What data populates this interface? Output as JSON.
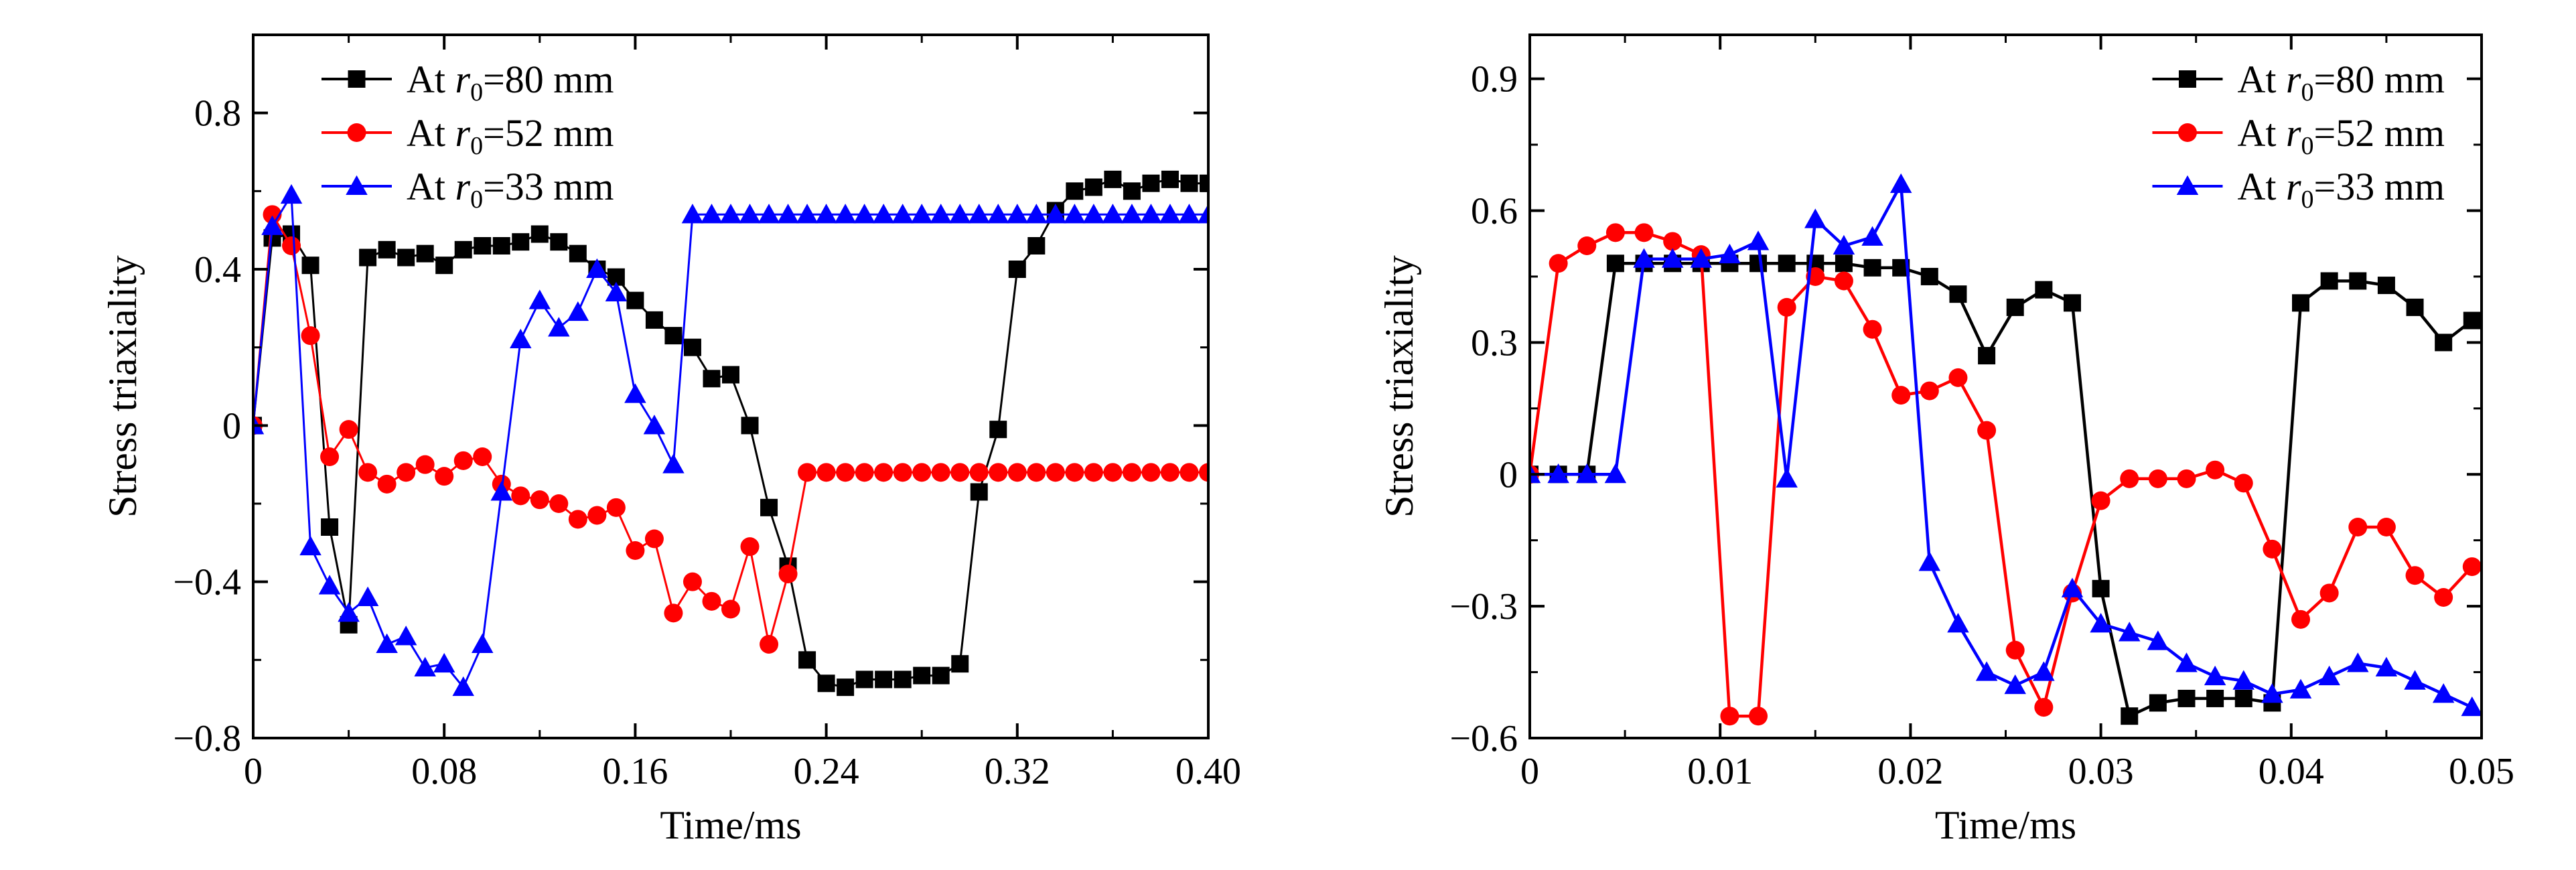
{
  "chart_data": [
    {
      "type": "line",
      "xlabel": "Time/ms",
      "ylabel": "Stress triaxiality",
      "xlim": [
        0,
        0.4
      ],
      "ylim": [
        -0.8,
        1.0
      ],
      "xticks": [
        0,
        0.08,
        0.16,
        0.24,
        0.32,
        0.4
      ],
      "xtick_labels": [
        "0",
        "0.08",
        "0.16",
        "0.24",
        "0.32",
        "0.40"
      ],
      "yticks": [
        -0.8,
        -0.4,
        0,
        0.4,
        0.8
      ],
      "ytick_labels": [
        "−0.8",
        "−0.4",
        "0",
        "0.4",
        "0.8"
      ],
      "legend_position": "top-left",
      "series": [
        {
          "name": "At r₀=80 mm",
          "legend_prefix": "At ",
          "legend_var": "r",
          "legend_sub": "0",
          "legend_suffix": "=80 mm",
          "color": "#000000",
          "marker": "square",
          "x": [
            0,
            0.008,
            0.016,
            0.024,
            0.032,
            0.04,
            0.048,
            0.056,
            0.064,
            0.072,
            0.08,
            0.088,
            0.096,
            0.104,
            0.112,
            0.12,
            0.128,
            0.136,
            0.144,
            0.152,
            0.16,
            0.168,
            0.176,
            0.184,
            0.192,
            0.2,
            0.208,
            0.216,
            0.224,
            0.232,
            0.24,
            0.248,
            0.256,
            0.264,
            0.272,
            0.28,
            0.288,
            0.296,
            0.304,
            0.312,
            0.32,
            0.328,
            0.336,
            0.344,
            0.352,
            0.36,
            0.368,
            0.376,
            0.384,
            0.392,
            0.4
          ],
          "y": [
            0,
            0.48,
            0.49,
            0.41,
            -0.26,
            -0.51,
            0.43,
            0.45,
            0.43,
            0.44,
            0.41,
            0.45,
            0.46,
            0.46,
            0.47,
            0.49,
            0.47,
            0.44,
            0.4,
            0.38,
            0.32,
            0.27,
            0.23,
            0.2,
            0.12,
            0.13,
            0.0,
            -0.21,
            -0.36,
            -0.6,
            -0.66,
            -0.67,
            -0.65,
            -0.65,
            -0.65,
            -0.64,
            -0.64,
            -0.61,
            -0.17,
            -0.01,
            0.4,
            0.46,
            0.55,
            0.6,
            0.61,
            0.63,
            0.6,
            0.62,
            0.63,
            0.62,
            0.62
          ]
        },
        {
          "name": "At r₀=52 mm",
          "legend_prefix": "At ",
          "legend_var": "r",
          "legend_sub": "0",
          "legend_suffix": "=52 mm",
          "color": "#ff0000",
          "marker": "circle",
          "x": [
            0,
            0.008,
            0.016,
            0.024,
            0.032,
            0.04,
            0.048,
            0.056,
            0.064,
            0.072,
            0.08,
            0.088,
            0.096,
            0.104,
            0.112,
            0.12,
            0.128,
            0.136,
            0.144,
            0.152,
            0.16,
            0.168,
            0.176,
            0.184,
            0.192,
            0.2,
            0.208,
            0.216,
            0.224,
            0.232,
            0.24,
            0.248,
            0.256,
            0.264,
            0.272,
            0.28,
            0.288,
            0.296,
            0.304,
            0.312,
            0.32,
            0.328,
            0.336,
            0.344,
            0.352,
            0.36,
            0.368,
            0.376,
            0.384,
            0.392,
            0.4
          ],
          "y": [
            0,
            0.54,
            0.46,
            0.23,
            -0.08,
            -0.01,
            -0.12,
            -0.15,
            -0.12,
            -0.1,
            -0.13,
            -0.09,
            -0.08,
            -0.15,
            -0.18,
            -0.19,
            -0.2,
            -0.24,
            -0.23,
            -0.21,
            -0.32,
            -0.29,
            -0.48,
            -0.4,
            -0.45,
            -0.47,
            -0.31,
            -0.56,
            -0.38,
            -0.12,
            -0.12,
            -0.12,
            -0.12,
            -0.12,
            -0.12,
            -0.12,
            -0.12,
            -0.12,
            -0.12,
            -0.12,
            -0.12,
            -0.12,
            -0.12,
            -0.12,
            -0.12,
            -0.12,
            -0.12,
            -0.12,
            -0.12,
            -0.12,
            -0.12
          ]
        },
        {
          "name": "At r₀=33 mm",
          "legend_prefix": "At ",
          "legend_var": "r",
          "legend_sub": "0",
          "legend_suffix": "=33 mm",
          "color": "#0000ff",
          "marker": "triangle",
          "x": [
            0,
            0.008,
            0.016,
            0.024,
            0.032,
            0.04,
            0.048,
            0.056,
            0.064,
            0.072,
            0.08,
            0.088,
            0.096,
            0.104,
            0.112,
            0.12,
            0.128,
            0.136,
            0.144,
            0.152,
            0.16,
            0.168,
            0.176,
            0.184,
            0.192,
            0.2,
            0.208,
            0.216,
            0.224,
            0.232,
            0.24,
            0.248,
            0.256,
            0.264,
            0.272,
            0.28,
            0.288,
            0.296,
            0.304,
            0.312,
            0.32,
            0.328,
            0.336,
            0.344,
            0.352,
            0.36,
            0.368,
            0.376,
            0.384,
            0.392,
            0.4
          ],
          "y": [
            0,
            0.51,
            0.59,
            -0.31,
            -0.41,
            -0.48,
            -0.44,
            -0.56,
            -0.54,
            -0.62,
            -0.61,
            -0.67,
            -0.56,
            -0.17,
            0.22,
            0.32,
            0.25,
            0.29,
            0.4,
            0.34,
            0.08,
            0.0,
            -0.1,
            0.54,
            0.54,
            0.54,
            0.54,
            0.54,
            0.54,
            0.54,
            0.54,
            0.54,
            0.54,
            0.54,
            0.54,
            0.54,
            0.54,
            0.54,
            0.54,
            0.54,
            0.54,
            0.54,
            0.54,
            0.54,
            0.54,
            0.54,
            0.54,
            0.54,
            0.54,
            0.54,
            0.54
          ]
        }
      ]
    },
    {
      "type": "line",
      "xlabel": "Time/ms",
      "ylabel": "Stress triaxiality",
      "xlim": [
        0,
        0.05
      ],
      "ylim": [
        -0.6,
        1.0
      ],
      "xticks": [
        0,
        0.01,
        0.02,
        0.03,
        0.04,
        0.05
      ],
      "xtick_labels": [
        "0",
        "0.01",
        "0.02",
        "0.03",
        "0.04",
        "0.05"
      ],
      "yticks": [
        -0.6,
        -0.3,
        0,
        0.3,
        0.6,
        0.9
      ],
      "ytick_labels": [
        "−0.6",
        "−0.3",
        "0",
        "0.3",
        "0.6",
        "0.9"
      ],
      "legend_position": "top-right",
      "series": [
        {
          "name": "At r₀=80 mm",
          "legend_prefix": "At ",
          "legend_var": "r",
          "legend_sub": "0",
          "legend_suffix": "=80 mm",
          "color": "#000000",
          "marker": "square",
          "x": [
            0,
            0.0015,
            0.003,
            0.0045,
            0.006,
            0.0075,
            0.009,
            0.0105,
            0.012,
            0.0135,
            0.015,
            0.0165,
            0.018,
            0.0195,
            0.021,
            0.0225,
            0.024,
            0.0255,
            0.027,
            0.0285,
            0.03,
            0.0315,
            0.033,
            0.0345,
            0.036,
            0.0375,
            0.039,
            0.0405,
            0.042,
            0.0435,
            0.045,
            0.0465,
            0.048,
            0.0495
          ],
          "y": [
            0,
            0.0,
            0.0,
            0.48,
            0.48,
            0.48,
            0.48,
            0.48,
            0.48,
            0.48,
            0.48,
            0.48,
            0.47,
            0.47,
            0.45,
            0.41,
            0.27,
            0.38,
            0.42,
            0.39,
            -0.26,
            -0.55,
            -0.52,
            -0.51,
            -0.51,
            -0.51,
            -0.52,
            0.39,
            0.44,
            0.44,
            0.43,
            0.38,
            0.3,
            0.35
          ]
        },
        {
          "name": "At r₀=52 mm",
          "legend_prefix": "At ",
          "legend_var": "r",
          "legend_sub": "0",
          "legend_suffix": "=52 mm",
          "color": "#ff0000",
          "marker": "circle",
          "x": [
            0,
            0.0015,
            0.003,
            0.0045,
            0.006,
            0.0075,
            0.009,
            0.0105,
            0.012,
            0.0135,
            0.015,
            0.0165,
            0.018,
            0.0195,
            0.021,
            0.0225,
            0.024,
            0.0255,
            0.027,
            0.0285,
            0.03,
            0.0315,
            0.033,
            0.0345,
            0.036,
            0.0375,
            0.039,
            0.0405,
            0.042,
            0.0435,
            0.045,
            0.0465,
            0.048,
            0.0495
          ],
          "y": [
            0,
            0.48,
            0.52,
            0.55,
            0.55,
            0.53,
            0.5,
            -0.55,
            -0.55,
            0.38,
            0.45,
            0.44,
            0.33,
            0.18,
            0.19,
            0.22,
            0.1,
            -0.4,
            -0.53,
            -0.27,
            -0.06,
            -0.01,
            -0.01,
            -0.01,
            0.01,
            -0.02,
            -0.17,
            -0.33,
            -0.27,
            -0.12,
            -0.12,
            -0.23,
            -0.28,
            -0.21
          ]
        },
        {
          "name": "At r₀=33 mm",
          "legend_prefix": "At ",
          "legend_var": "r",
          "legend_sub": "0",
          "legend_suffix": "=33 mm",
          "color": "#0000ff",
          "marker": "triangle",
          "x": [
            0,
            0.0015,
            0.003,
            0.0045,
            0.006,
            0.0075,
            0.009,
            0.0105,
            0.012,
            0.0135,
            0.015,
            0.0165,
            0.018,
            0.0195,
            0.021,
            0.0225,
            0.024,
            0.0255,
            0.027,
            0.0285,
            0.03,
            0.0315,
            0.033,
            0.0345,
            0.036,
            0.0375,
            0.039,
            0.0405,
            0.042,
            0.0435,
            0.045,
            0.0465,
            0.048,
            0.0495
          ],
          "y": [
            0,
            0.0,
            0.0,
            0.0,
            0.49,
            0.49,
            0.49,
            0.5,
            0.53,
            -0.01,
            0.58,
            0.52,
            0.54,
            0.66,
            -0.2,
            -0.34,
            -0.45,
            -0.48,
            -0.45,
            -0.26,
            -0.34,
            -0.36,
            -0.38,
            -0.43,
            -0.46,
            -0.47,
            -0.5,
            -0.49,
            -0.46,
            -0.43,
            -0.44,
            -0.47,
            -0.5,
            -0.53
          ]
        }
      ]
    }
  ]
}
